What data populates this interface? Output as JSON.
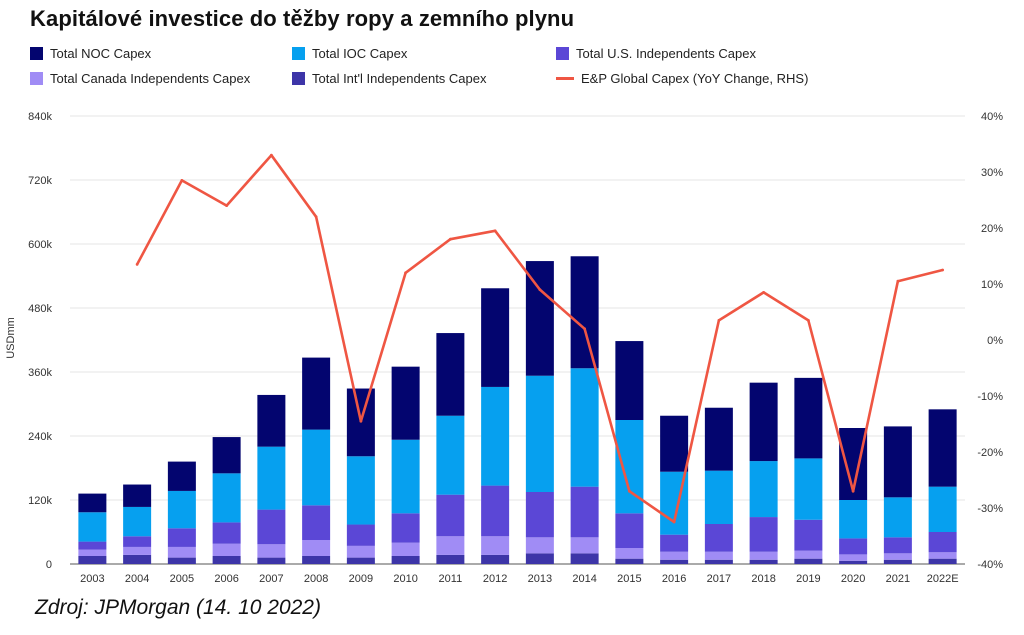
{
  "title": "Kapitálové investice do těžby ropy a zemního plynu",
  "source": "Zdroj: JPMorgan (14. 10 2022)",
  "chart_data": {
    "type": "bar",
    "stacked": true,
    "categories": [
      "2003",
      "2004",
      "2005",
      "2006",
      "2007",
      "2008",
      "2009",
      "2010",
      "2011",
      "2012",
      "2013",
      "2014",
      "2015",
      "2016",
      "2017",
      "2018",
      "2019",
      "2020",
      "2021",
      "2022E"
    ],
    "ylabel": "USDmm",
    "ylim": [
      0,
      840000
    ],
    "y_ticks": [
      "0",
      "120k",
      "240k",
      "360k",
      "480k",
      "600k",
      "720k",
      "840k"
    ],
    "y2lim": [
      -40,
      40
    ],
    "y2_ticks": [
      "-40%",
      "-30%",
      "-20%",
      "-10%",
      "0%",
      "10%",
      "20%",
      "30%",
      "40%"
    ],
    "grid": true,
    "legend_position": "top",
    "series": [
      {
        "name": "Total Int'l Independents Capex",
        "color": "#3d35a8",
        "values": [
          15000,
          17000,
          12000,
          15000,
          12000,
          15000,
          12000,
          15000,
          17000,
          17000,
          20000,
          20000,
          10000,
          8000,
          8000,
          8000,
          10000,
          6000,
          8000,
          10000
        ]
      },
      {
        "name": "Total Canada Independents Capex",
        "color": "#a08cf5",
        "values": [
          12000,
          15000,
          20000,
          23000,
          25000,
          30000,
          22000,
          25000,
          35000,
          35000,
          30000,
          30000,
          20000,
          15000,
          15000,
          15000,
          15000,
          12000,
          12000,
          12000
        ]
      },
      {
        "name": "Total U.S. Independents Capex",
        "color": "#5b47d6",
        "values": [
          15000,
          20000,
          35000,
          40000,
          65000,
          65000,
          40000,
          55000,
          78000,
          95000,
          85000,
          95000,
          65000,
          32000,
          52000,
          65000,
          58000,
          30000,
          30000,
          38000
        ]
      },
      {
        "name": "Total IOC Capex",
        "color": "#06a0ef",
        "values": [
          55000,
          55000,
          70000,
          92000,
          118000,
          142000,
          128000,
          138000,
          148000,
          185000,
          218000,
          222000,
          175000,
          118000,
          100000,
          105000,
          115000,
          72000,
          75000,
          85000
        ]
      },
      {
        "name": "Total NOC Capex",
        "color": "#03056f",
        "values": [
          35000,
          42000,
          55000,
          68000,
          97000,
          135000,
          127000,
          137000,
          155000,
          185000,
          215000,
          210000,
          148000,
          105000,
          118000,
          147000,
          151000,
          135000,
          133000,
          145000
        ]
      }
    ],
    "line_series": {
      "name": "E&P Global Capex (YoY Change, RHS)",
      "color": "#ef5643",
      "axis": "right",
      "x": [
        "2004",
        "2005",
        "2006",
        "2007",
        "2008",
        "2009",
        "2010",
        "2011",
        "2012",
        "2013",
        "2014",
        "2015",
        "2016",
        "2017",
        "2018",
        "2019",
        "2020",
        "2021",
        "2022E"
      ],
      "values": [
        13.5,
        28.5,
        24,
        33,
        22,
        -14.5,
        12,
        18,
        19.5,
        9,
        2,
        -27,
        -32.5,
        3.5,
        8.5,
        3.5,
        -27,
        10.5,
        12.5
      ]
    }
  },
  "legend_items": [
    {
      "label": "Total NOC Capex",
      "color": "#03056f",
      "kind": "box"
    },
    {
      "label": "Total IOC Capex",
      "color": "#06a0ef",
      "kind": "box"
    },
    {
      "label": "Total U.S. Independents Capex",
      "color": "#5b47d6",
      "kind": "box"
    },
    {
      "label": "Total Canada Independents Capex",
      "color": "#a08cf5",
      "kind": "box"
    },
    {
      "label": "Total Int'l Independents Capex",
      "color": "#3d35a8",
      "kind": "box"
    },
    {
      "label": "E&P Global Capex (YoY Change, RHS)",
      "color": "#ef5643",
      "kind": "line"
    }
  ]
}
